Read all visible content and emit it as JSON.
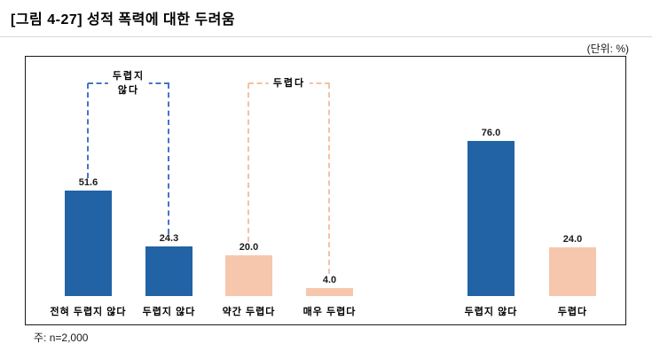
{
  "figure": {
    "title": "[그림 4-27] 성적 폭력에 대한 두려움",
    "unit_label": "(단위:  %)",
    "footnote": "주: n=2,000"
  },
  "colors": {
    "blue": "#2263a5",
    "peach": "#f6c7ac",
    "bracket_blue": "#4575c4",
    "bracket_peach": "#f3c2a4",
    "frame_border": "#1a1a1a"
  },
  "chart_data": {
    "type": "bar",
    "title": "성적 폭력에 대한 두려움",
    "unit": "%",
    "xlabel": "",
    "ylabel": "%",
    "ylim": [
      0,
      100
    ],
    "grid": false,
    "legend_position": "none",
    "bars": [
      {
        "category": "전혀 두렵지 않다",
        "value": 51.6,
        "value_label": "51.6",
        "color": "blue"
      },
      {
        "category": "두렵지 않다",
        "value": 24.3,
        "value_label": "24.3",
        "color": "blue"
      },
      {
        "category": "약간 두렵다",
        "value": 20.0,
        "value_label": "20.0",
        "color": "peach"
      },
      {
        "category": "매우 두렵다",
        "value": 4.0,
        "value_label": "4.0",
        "color": "peach"
      },
      {
        "category": "두렵지 않다",
        "value": 76.0,
        "value_label": "76.0",
        "color": "blue"
      },
      {
        "category": "두렵다",
        "value": 24.0,
        "value_label": "24.0",
        "color": "peach"
      }
    ],
    "brackets": [
      {
        "label_line1": "두렵지",
        "label_line2": "않다",
        "color": "bracket_blue",
        "covers": [
          "전혀 두렵지 않다",
          "두렵지 않다"
        ]
      },
      {
        "label_line1": "두렵다",
        "color": "bracket_peach",
        "covers": [
          "약간 두렵다",
          "매우 두렵다"
        ]
      }
    ]
  }
}
